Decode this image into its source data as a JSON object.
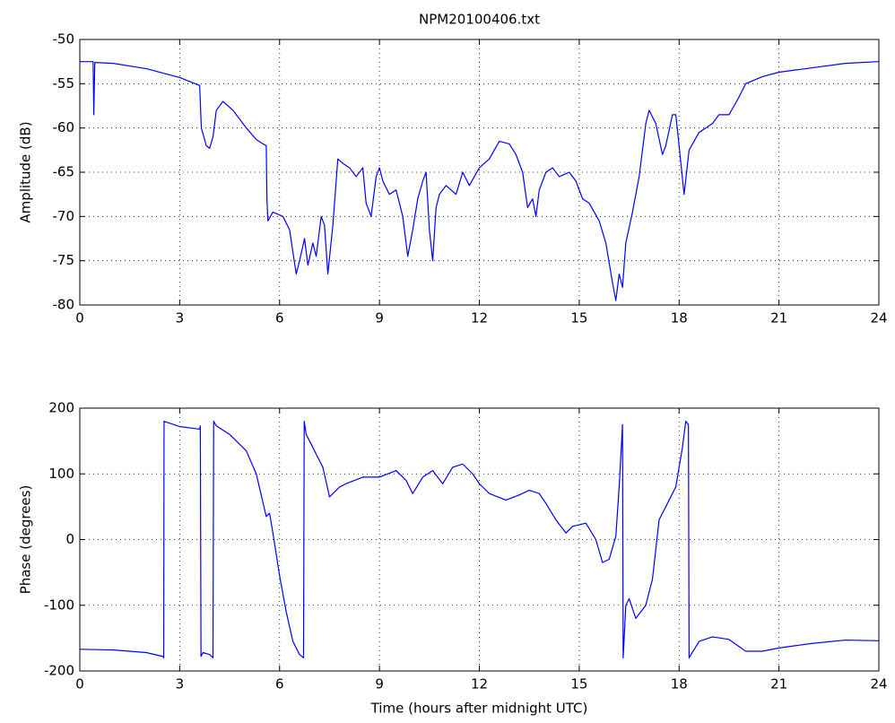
{
  "chart_data": [
    {
      "type": "line",
      "title": "NPM20100406.txt",
      "y_label": "Amplitude (dB)",
      "grid": true,
      "xlim": [
        0,
        24
      ],
      "xticks": [
        0,
        3,
        6,
        9,
        12,
        15,
        18,
        21,
        24
      ],
      "ylim": [
        -80,
        -50
      ],
      "yticks": [
        -80,
        -75,
        -70,
        -65,
        -60,
        -55,
        -50
      ],
      "x": [
        0,
        0.4,
        0.42,
        0.45,
        1,
        2,
        3,
        3.6,
        3.65,
        3.8,
        3.9,
        4,
        4.1,
        4.3,
        4.6,
        5,
        5.3,
        5.5,
        5.6,
        5.62,
        5.65,
        5.8,
        6.1,
        6.3,
        6.5,
        6.6,
        6.75,
        6.85,
        7,
        7.1,
        7.25,
        7.35,
        7.45,
        7.6,
        7.75,
        7.9,
        8.1,
        8.3,
        8.5,
        8.6,
        8.75,
        8.9,
        9,
        9.1,
        9.3,
        9.5,
        9.7,
        9.85,
        10,
        10.15,
        10.3,
        10.4,
        10.5,
        10.6,
        10.7,
        10.8,
        11,
        11.3,
        11.5,
        11.7,
        12,
        12.3,
        12.6,
        12.9,
        13.1,
        13.3,
        13.45,
        13.6,
        13.7,
        13.8,
        14,
        14.2,
        14.4,
        14.7,
        14.9,
        15.1,
        15.3,
        15.6,
        15.8,
        16,
        16.1,
        16.2,
        16.3,
        16.4,
        16.6,
        16.8,
        17,
        17.1,
        17.3,
        17.5,
        17.6,
        17.8,
        17.9,
        18,
        18.15,
        18.3,
        18.6,
        19,
        19.2,
        19.5,
        19.8,
        20,
        20.5,
        21,
        22,
        23,
        24
      ],
      "series": [
        {
          "color": "#0000ff",
          "values": [
            -52.5,
            -52.5,
            -58.5,
            -52.6,
            -52.7,
            -53.3,
            -54.3,
            -55.2,
            -60,
            -62,
            -62.3,
            -61,
            -58,
            -57,
            -58,
            -60,
            -61.3,
            -61.8,
            -62,
            -68,
            -70.5,
            -69.5,
            -70,
            -71.5,
            -76.5,
            -75,
            -72.5,
            -75.5,
            -73,
            -74.5,
            -70,
            -71,
            -76.5,
            -71,
            -63.5,
            -64,
            -64.5,
            -65.5,
            -64.5,
            -68.5,
            -70,
            -65.5,
            -64.5,
            -66,
            -67.5,
            -67,
            -70,
            -74.5,
            -71.5,
            -68,
            -66,
            -65,
            -71.5,
            -75,
            -69,
            -67.5,
            -66.5,
            -67.5,
            -65,
            -66.5,
            -64.5,
            -63.5,
            -61.5,
            -61.8,
            -63,
            -65,
            -69,
            -68,
            -70,
            -67,
            -65,
            -64.5,
            -65.5,
            -65,
            -66,
            -68,
            -68.5,
            -70.5,
            -73,
            -77.5,
            -79.5,
            -76.5,
            -78,
            -73,
            -69.5,
            -65.5,
            -59.5,
            -58,
            -59.5,
            -63,
            -62,
            -58.5,
            -58.5,
            -62,
            -67.5,
            -62.5,
            -60.5,
            -59.5,
            -58.5,
            -58.5,
            -56.5,
            -55,
            -54.2,
            -53.7,
            -53.2,
            -52.7,
            -52.5
          ]
        }
      ]
    },
    {
      "type": "line",
      "x_label": "Time (hours after midnight UTC)",
      "y_label": "Phase (degrees)",
      "grid": true,
      "xlim": [
        0,
        24
      ],
      "xticks": [
        0,
        3,
        6,
        9,
        12,
        15,
        18,
        21,
        24
      ],
      "ylim": [
        -200,
        200
      ],
      "yticks": [
        -200,
        -100,
        0,
        100,
        200
      ],
      "x": [
        0,
        1,
        2,
        2.5,
        2.52,
        2.53,
        3,
        3.6,
        3.62,
        3.64,
        3.7,
        3.9,
        4,
        4.02,
        4.1,
        4.5,
        5,
        5.3,
        5.6,
        5.7,
        5.8,
        6,
        6.2,
        6.4,
        6.6,
        6.72,
        6.74,
        6.8,
        7,
        7.3,
        7.5,
        7.8,
        8,
        8.5,
        9,
        9.5,
        9.8,
        10,
        10.3,
        10.6,
        10.9,
        11.2,
        11.5,
        11.8,
        12,
        12.3,
        12.8,
        13.2,
        13.5,
        13.8,
        14,
        14.3,
        14.6,
        14.8,
        15.2,
        15.5,
        15.7,
        15.9,
        16.1,
        16.2,
        16.3,
        16.32,
        16.4,
        16.5,
        16.7,
        17,
        17.2,
        17.4,
        17.7,
        17.9,
        18.1,
        18.2,
        18.28,
        18.3,
        18.6,
        19,
        19.5,
        20,
        20.5,
        21,
        22,
        23,
        24
      ],
      "series": [
        {
          "color": "#0000ff",
          "values": [
            -167,
            -168,
            -172,
            -178,
            -180,
            180,
            172,
            168,
            173,
            -178,
            -172,
            -175,
            -180,
            180,
            173,
            160,
            135,
            100,
            35,
            40,
            10,
            -55,
            -110,
            -155,
            -175,
            -180,
            180,
            160,
            140,
            110,
            65,
            80,
            85,
            95,
            95,
            105,
            90,
            70,
            95,
            105,
            85,
            110,
            115,
            100,
            85,
            70,
            60,
            68,
            75,
            70,
            55,
            30,
            10,
            20,
            25,
            0,
            -35,
            -30,
            5,
            80,
            175,
            -180,
            -100,
            -90,
            -120,
            -100,
            -60,
            30,
            60,
            80,
            140,
            180,
            175,
            -180,
            -155,
            -148,
            -152,
            -170,
            -170,
            -165,
            -158,
            -153,
            -154
          ]
        }
      ]
    }
  ]
}
